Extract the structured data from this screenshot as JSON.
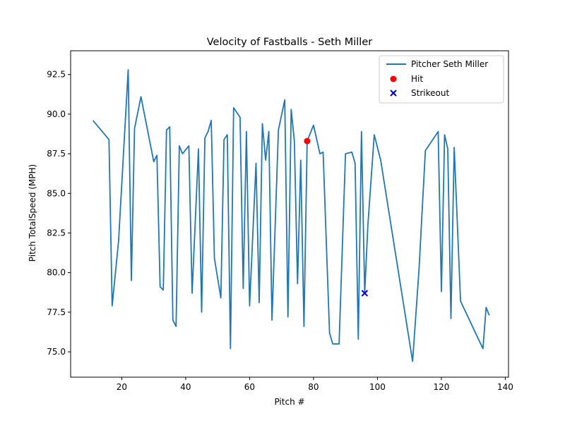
{
  "chart_data": {
    "type": "line",
    "title": "Velocity of Fastballs - Seth Miller",
    "xlabel": "Pitch #",
    "ylabel": "Pitch TotalSpeed (MPH)",
    "xlim": [
      4,
      141
    ],
    "ylim": [
      73.4,
      94.0
    ],
    "xticks": [
      20,
      40,
      60,
      80,
      100,
      120,
      140
    ],
    "yticks": [
      75.0,
      77.5,
      80.0,
      82.5,
      85.0,
      87.5,
      90.0,
      92.5
    ],
    "ytick_labels": [
      "75.0",
      "77.5",
      "80.0",
      "82.5",
      "85.0",
      "87.5",
      "90.0",
      "92.5"
    ],
    "legend_position": "top-right",
    "series": [
      {
        "name": "Pitcher Seth Miller",
        "color": "#1f77b4",
        "x": [
          11,
          16,
          17,
          19,
          22,
          23,
          24,
          26,
          30,
          31,
          32,
          33,
          34,
          35,
          36,
          37,
          38,
          39,
          41,
          42,
          44,
          45,
          46,
          47,
          48,
          49,
          51,
          52,
          53,
          54,
          55,
          57,
          58,
          59,
          60,
          62,
          63,
          64,
          65,
          66,
          67,
          69,
          71,
          72,
          73,
          74,
          75,
          76,
          77,
          78,
          80,
          82,
          83,
          85,
          86,
          88,
          90,
          92,
          93,
          94,
          95,
          96,
          97,
          99,
          101,
          111,
          113,
          115,
          119,
          120,
          121,
          122,
          123,
          124,
          126,
          133,
          134,
          135
        ],
        "y": [
          89.6,
          88.4,
          77.9,
          82.0,
          92.8,
          79.5,
          89.1,
          91.1,
          87.0,
          87.4,
          79.1,
          78.9,
          89.0,
          89.2,
          77.0,
          76.6,
          88.0,
          87.5,
          88.0,
          78.7,
          87.8,
          77.5,
          88.5,
          88.9,
          89.6,
          80.9,
          78.4,
          88.4,
          88.7,
          75.2,
          90.4,
          89.8,
          79.0,
          88.9,
          77.9,
          86.9,
          78.1,
          89.4,
          87.1,
          88.9,
          77.0,
          89.0,
          90.9,
          77.2,
          90.3,
          88.3,
          79.3,
          87.1,
          76.6,
          88.3,
          89.3,
          87.5,
          87.6,
          76.2,
          75.5,
          75.5,
          87.5,
          87.6,
          86.9,
          75.8,
          88.9,
          78.7,
          83.0,
          88.7,
          87.1,
          74.4,
          80.2,
          87.7,
          88.9,
          78.8,
          88.7,
          87.8,
          77.1,
          87.9,
          78.2,
          75.2,
          77.8,
          77.3
        ]
      }
    ],
    "markers": [
      {
        "name": "Hit",
        "shape": "circle",
        "color": "#ff0000",
        "x": 78,
        "y": 88.3
      },
      {
        "name": "Strikeout",
        "shape": "x",
        "color": "#0000cc",
        "x": 96,
        "y": 78.7
      }
    ]
  }
}
